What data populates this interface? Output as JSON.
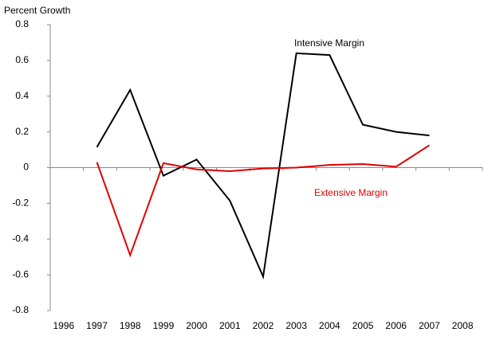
{
  "chart_data": {
    "type": "line",
    "y_axis_label": "Percent Growth",
    "categories": [
      "1996",
      "1997",
      "1998",
      "1999",
      "2000",
      "2001",
      "2002",
      "2003",
      "2004",
      "2005",
      "2006",
      "2007",
      "2008"
    ],
    "series": [
      {
        "name": "Intensive Margin",
        "color": "#000000",
        "values": [
          null,
          0.115,
          0.435,
          -0.045,
          0.045,
          -0.185,
          -0.61,
          0.64,
          0.63,
          0.24,
          0.2,
          0.18,
          null
        ]
      },
      {
        "name": "Extensive Margin",
        "color": "#e00000",
        "values": [
          null,
          0.03,
          -0.49,
          0.025,
          -0.01,
          -0.02,
          -0.005,
          0,
          0.015,
          0.02,
          0.005,
          0.125,
          null
        ]
      }
    ],
    "ylim": [
      -0.8,
      0.8
    ],
    "yticks": [
      -0.8,
      -0.6,
      -0.4,
      -0.2,
      0,
      0.2,
      0.4,
      0.6,
      0.8
    ],
    "grid": false
  }
}
